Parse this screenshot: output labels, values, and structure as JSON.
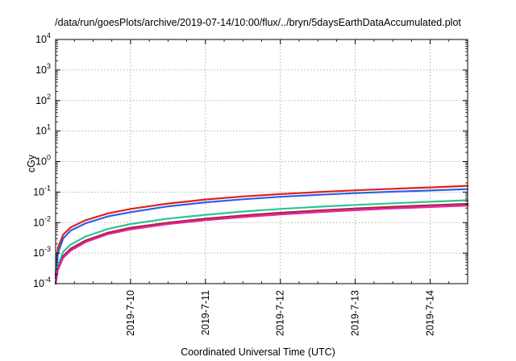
{
  "chart_data": {
    "type": "line",
    "title": "/data/run/goesPlots/archive/2019-07-14/10:00/flux/../bryn/5daysEarthDataAccumulated.plot",
    "xlabel": "Coordinated Universal Time (UTC)",
    "ylabel": "cGy",
    "yscale": "log",
    "ylim": [
      0.0001,
      10000
    ],
    "xlim": [
      0,
      5.5
    ],
    "x_tick_labels": [
      "2019-7-10",
      "2019-7-11",
      "2019-7-12",
      "2019-7-13",
      "2019-7-14"
    ],
    "x_tick_positions": [
      1,
      2,
      3,
      4,
      5
    ],
    "y_ticks": [
      {
        "value": 0.0001,
        "base": "10",
        "exp": "-4"
      },
      {
        "value": 0.001,
        "base": "10",
        "exp": "-3"
      },
      {
        "value": 0.01,
        "base": "10",
        "exp": "-2"
      },
      {
        "value": 0.1,
        "base": "10",
        "exp": "-1"
      },
      {
        "value": 1,
        "base": "10",
        "exp": "0"
      },
      {
        "value": 10,
        "base": "10",
        "exp": "1"
      },
      {
        "value": 100,
        "base": "10",
        "exp": "2"
      },
      {
        "value": 1000,
        "base": "10",
        "exp": "3"
      },
      {
        "value": 10000,
        "base": "10",
        "exp": "4"
      }
    ],
    "grid": true,
    "series": [
      {
        "color": "#e0201c",
        "x": [
          0,
          0.03,
          0.1,
          0.2,
          0.4,
          0.7,
          1.0,
          1.5,
          2.0,
          2.5,
          3.0,
          3.5,
          4.0,
          4.5,
          5.0,
          5.5
        ],
        "y": [
          0.0002,
          0.0015,
          0.004,
          0.007,
          0.012,
          0.02,
          0.028,
          0.042,
          0.057,
          0.072,
          0.086,
          0.1,
          0.114,
          0.128,
          0.142,
          0.16
        ]
      },
      {
        "color": "#2563e8",
        "x": [
          0,
          0.03,
          0.1,
          0.2,
          0.4,
          0.7,
          1.0,
          1.5,
          2.0,
          2.5,
          3.0,
          3.5,
          4.0,
          4.5,
          5.0,
          5.5
        ],
        "y": [
          0.00015,
          0.001,
          0.003,
          0.0055,
          0.0095,
          0.016,
          0.022,
          0.034,
          0.046,
          0.058,
          0.07,
          0.081,
          0.092,
          0.103,
          0.113,
          0.125
        ]
      },
      {
        "color": "#2bc49a",
        "x": [
          0,
          0.03,
          0.1,
          0.2,
          0.4,
          0.7,
          1.0,
          1.5,
          2.0,
          2.5,
          3.0,
          3.5,
          4.0,
          4.5,
          5.0,
          5.5
        ],
        "y": [
          0.0001,
          0.0004,
          0.0011,
          0.0019,
          0.0035,
          0.0062,
          0.009,
          0.0135,
          0.018,
          0.023,
          0.028,
          0.033,
          0.038,
          0.043,
          0.048,
          0.054
        ]
      },
      {
        "color": "#a8273e",
        "x": [
          0,
          0.03,
          0.1,
          0.2,
          0.4,
          0.7,
          1.0,
          1.5,
          2.0,
          2.5,
          3.0,
          3.5,
          4.0,
          4.5,
          5.0,
          5.5
        ],
        "y": [
          0.0001,
          0.0003,
          0.0008,
          0.0014,
          0.0026,
          0.0047,
          0.0068,
          0.01,
          0.0135,
          0.0172,
          0.021,
          0.025,
          0.029,
          0.033,
          0.037,
          0.041
        ]
      },
      {
        "color": "#ec1fa5",
        "x": [
          0,
          0.03,
          0.1,
          0.2,
          0.4,
          0.7,
          1.0,
          1.5,
          2.0,
          2.5,
          3.0,
          3.5,
          4.0,
          4.5,
          5.0,
          5.5
        ],
        "y": [
          0.0001,
          0.00028,
          0.0007,
          0.0012,
          0.0023,
          0.0042,
          0.006,
          0.009,
          0.012,
          0.0152,
          0.0185,
          0.022,
          0.0255,
          0.029,
          0.0325,
          0.036
        ]
      }
    ]
  }
}
